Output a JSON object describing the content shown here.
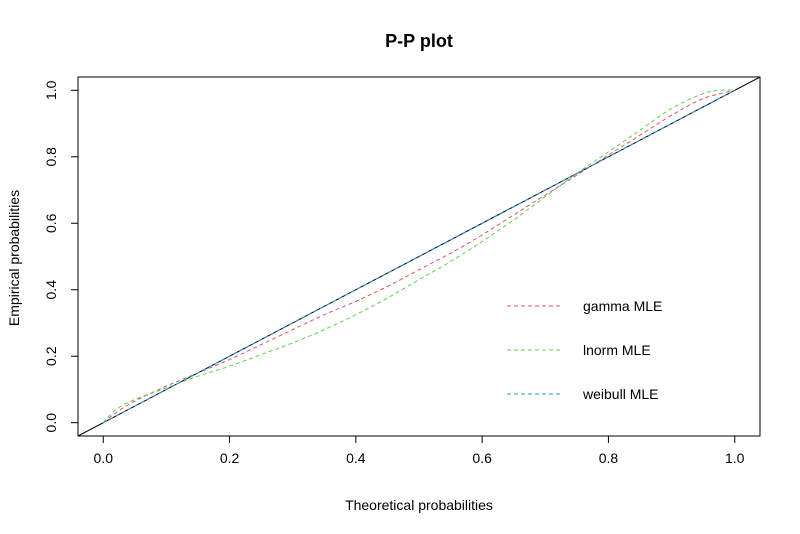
{
  "chart_data": {
    "type": "line",
    "title": "P-P plot",
    "xlabel": "Theoretical probabilities",
    "ylabel": "Empirical probabilities",
    "xlim": [
      -0.04,
      1.04
    ],
    "ylim": [
      -0.04,
      1.04
    ],
    "x_ticks": [
      0.0,
      0.2,
      0.4,
      0.6,
      0.8,
      1.0
    ],
    "y_ticks": [
      0.0,
      0.2,
      0.4,
      0.6,
      0.8,
      1.0
    ],
    "x_tick_labels": [
      "0.0",
      "0.2",
      "0.4",
      "0.6",
      "0.8",
      "1.0"
    ],
    "y_tick_labels": [
      "0.0",
      "0.2",
      "0.4",
      "0.6",
      "0.8",
      "1.0"
    ],
    "grid": false,
    "legend_position": "bottom-right",
    "reference_line": {
      "from": [
        -0.04,
        -0.04
      ],
      "to": [
        1.04,
        1.04
      ],
      "color": "#000000"
    },
    "series": [
      {
        "name": "gamma MLE",
        "color": "#DF536B",
        "style": "dashed",
        "x": [
          0.0,
          0.02,
          0.05,
          0.1,
          0.15,
          0.2,
          0.25,
          0.3,
          0.35,
          0.4,
          0.45,
          0.5,
          0.55,
          0.6,
          0.65,
          0.7,
          0.75,
          0.8,
          0.85,
          0.9,
          0.95,
          1.0
        ],
        "y": [
          0.0,
          0.03,
          0.065,
          0.11,
          0.15,
          0.19,
          0.235,
          0.28,
          0.325,
          0.365,
          0.41,
          0.46,
          0.51,
          0.565,
          0.625,
          0.685,
          0.745,
          0.805,
          0.865,
          0.925,
          0.975,
          1.0
        ]
      },
      {
        "name": "lnorm MLE",
        "color": "#61D04F",
        "style": "dashed",
        "x": [
          0.0,
          0.02,
          0.05,
          0.1,
          0.15,
          0.2,
          0.25,
          0.3,
          0.35,
          0.4,
          0.45,
          0.5,
          0.55,
          0.6,
          0.65,
          0.7,
          0.75,
          0.8,
          0.85,
          0.9,
          0.95,
          0.98,
          1.0
        ],
        "y": [
          0.0,
          0.04,
          0.07,
          0.105,
          0.14,
          0.17,
          0.205,
          0.24,
          0.28,
          0.325,
          0.375,
          0.43,
          0.485,
          0.545,
          0.61,
          0.68,
          0.75,
          0.815,
          0.88,
          0.945,
          0.99,
          1.0,
          1.0
        ]
      },
      {
        "name": "weibull MLE",
        "color": "#2297E6",
        "style": "dashed",
        "x": [
          0.0,
          0.1,
          0.2,
          0.3,
          0.4,
          0.5,
          0.6,
          0.7,
          0.8,
          0.9,
          1.0
        ],
        "y": [
          0.0,
          0.1,
          0.2,
          0.3,
          0.4,
          0.5,
          0.6,
          0.7,
          0.8,
          0.9,
          1.0
        ]
      }
    ]
  }
}
